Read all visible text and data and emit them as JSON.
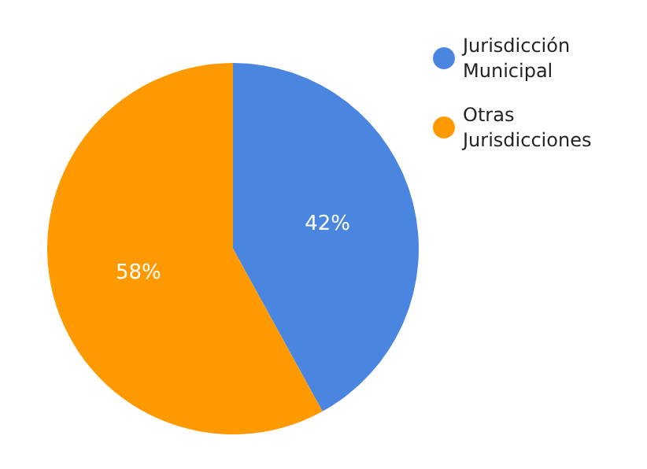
{
  "chart_data": {
    "type": "pie",
    "categories": [
      "Jurisdicción Municipal",
      "Otras Jurisdicciones"
    ],
    "values": [
      42,
      58
    ],
    "colors": [
      "#4a86e0",
      "#ff9900"
    ],
    "value_labels": [
      "42%",
      "58%"
    ],
    "legend": "top right"
  }
}
